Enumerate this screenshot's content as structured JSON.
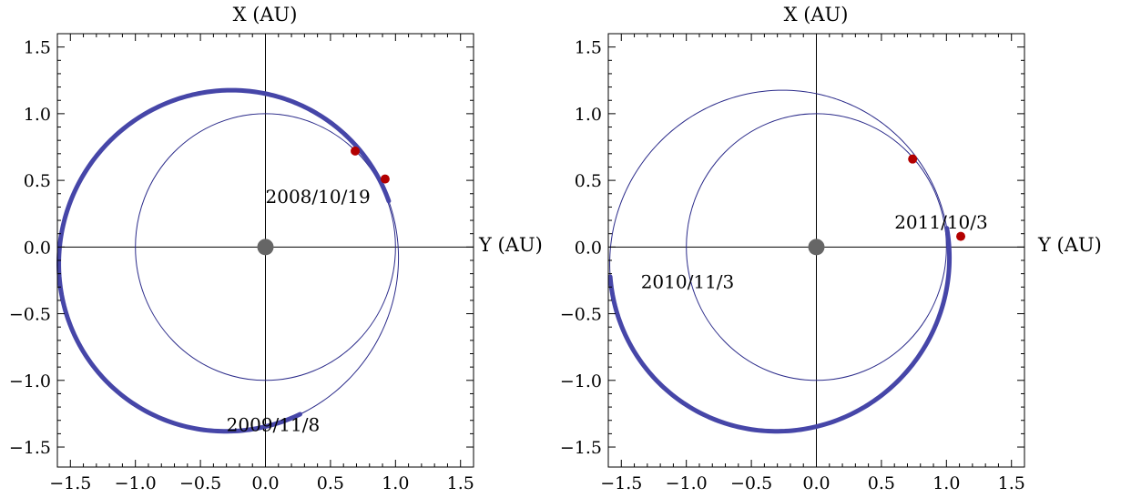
{
  "chart_data": [
    {
      "type": "scatter",
      "title": "",
      "xlabel": "Y (AU)",
      "ylabel": "X (AU)",
      "xlim": [
        -1.6,
        1.6
      ],
      "ylim": [
        -1.65,
        1.6
      ],
      "xticks": [
        "−1.5",
        "−1.0",
        "−0.5",
        "0.0",
        "0.5",
        "1.0",
        "1.5"
      ],
      "yticks": [
        "−1.5",
        "−1.0",
        "−0.5",
        "0.0",
        "0.5",
        "1.0",
        "1.5"
      ],
      "grid": false,
      "colors": {
        "orbit": "#2b2b8a",
        "path": "#4646a8",
        "planet": "#b30000",
        "sun": "#666666"
      },
      "earth_orbit": {
        "radius": 1.0
      },
      "object_orbit": {
        "a": 1.31,
        "e": 0.23,
        "perihelion_angle_deg": 20
      },
      "trajectory": {
        "start_deg": 20,
        "end_deg": 282
      },
      "planets": [
        {
          "x": 0.69,
          "y": 0.72
        },
        {
          "x": 0.92,
          "y": 0.51
        }
      ],
      "annotations": [
        {
          "text": "2008/10/19",
          "x": 0.0,
          "y": 0.33
        },
        {
          "text": "2009/11/8",
          "x": -0.3,
          "y": -1.38
        }
      ]
    },
    {
      "type": "scatter",
      "title": "",
      "xlabel": "Y (AU)",
      "ylabel": "X (AU)",
      "xlim": [
        -1.6,
        1.6
      ],
      "ylim": [
        -1.65,
        1.6
      ],
      "xticks": [
        "−1.5",
        "−1.0",
        "−0.5",
        "0.0",
        "0.5",
        "1.0",
        "1.5"
      ],
      "yticks": [
        "−1.5",
        "−1.0",
        "−0.5",
        "0.0",
        "0.5",
        "1.0",
        "1.5"
      ],
      "grid": false,
      "colors": {
        "orbit": "#2b2b8a",
        "path": "#4646a8",
        "planet": "#b30000",
        "sun": "#666666"
      },
      "earth_orbit": {
        "radius": 1.0
      },
      "object_orbit": {
        "a": 1.31,
        "e": 0.23,
        "perihelion_angle_deg": 20
      },
      "trajectory": {
        "start_deg": 188,
        "end_deg": 368
      },
      "planets": [
        {
          "x": 0.74,
          "y": 0.66
        },
        {
          "x": 1.11,
          "y": 0.08
        }
      ],
      "annotations": [
        {
          "text": "2011/10/3",
          "x": 0.6,
          "y": 0.14
        },
        {
          "text": "2010/11/3",
          "x": -1.35,
          "y": -0.31
        }
      ]
    }
  ]
}
